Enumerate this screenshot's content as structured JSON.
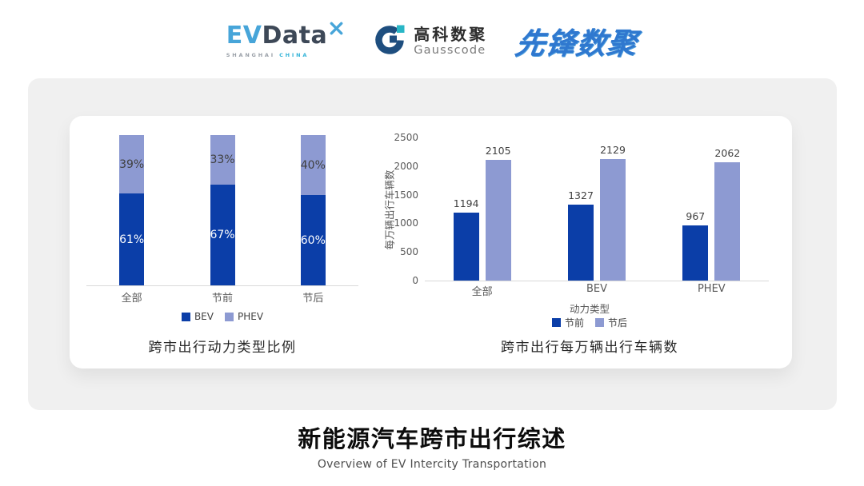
{
  "page": {
    "background": "#ffffff",
    "panel_bg": "#f0f0f0",
    "card_bg": "#ffffff"
  },
  "header": {
    "evdata": {
      "ev": "EV",
      "data": "Data",
      "sub_location": "SHANGHAI",
      "sub_country": "CHINA"
    },
    "gausscode": {
      "name_cn": "高科数聚",
      "name_en": "Gausscode"
    },
    "pioneer": {
      "name": "先锋数聚"
    }
  },
  "chart_data": [
    {
      "type": "bar",
      "variant": "stacked-percent",
      "title": "跨市出行动力类型比例",
      "categories": [
        "全部",
        "节前",
        "节后"
      ],
      "series": [
        {
          "name": "BEV",
          "color": "#0b3ea8",
          "values": [
            61,
            67,
            60
          ],
          "data_labels": [
            "61%",
            "67%",
            "60%"
          ],
          "label_color": "#ffffff"
        },
        {
          "name": "PHEV",
          "color": "#8d9ad2",
          "values": [
            39,
            33,
            40
          ],
          "data_labels": [
            "39%",
            "33%",
            "40%"
          ],
          "label_color": "#404040"
        }
      ],
      "ylim": [
        0,
        100
      ],
      "legend_position": "bottom",
      "grid": false
    },
    {
      "type": "bar",
      "variant": "grouped",
      "title": "跨市出行每万辆出行车辆数",
      "categories": [
        "全部",
        "BEV",
        "PHEV"
      ],
      "series": [
        {
          "name": "节前",
          "color": "#0b3ea8",
          "values": [
            1194,
            1327,
            967
          ]
        },
        {
          "name": "节后",
          "color": "#8d9ad2",
          "values": [
            2105,
            2129,
            2062
          ]
        }
      ],
      "xlabel": "动力类型",
      "ylabel": "每万辆出行车辆数",
      "ylim": [
        0,
        2500
      ],
      "yticks": [
        0,
        500,
        1000,
        1500,
        2000,
        2500
      ],
      "legend_position": "bottom",
      "grid": false
    }
  ],
  "footer": {
    "title": "新能源汽车跨市出行综述",
    "subtitle": "Overview of EV Intercity Transportation"
  },
  "colors": {
    "dark_blue": "#0b3ea8",
    "light_blue": "#8d9ad2",
    "axis_line": "#d9d9d9",
    "tick_text": "#595959",
    "value_text": "#3f3f3f",
    "chart_title_text": "#262626",
    "evdata_blue": "#47a5d9",
    "evdata_slate": "#3d4857",
    "gausscode_navy": "#1e4e7f",
    "gausscode_teal": "#28b6c6",
    "pioneer_blue": "#2f78cf"
  }
}
